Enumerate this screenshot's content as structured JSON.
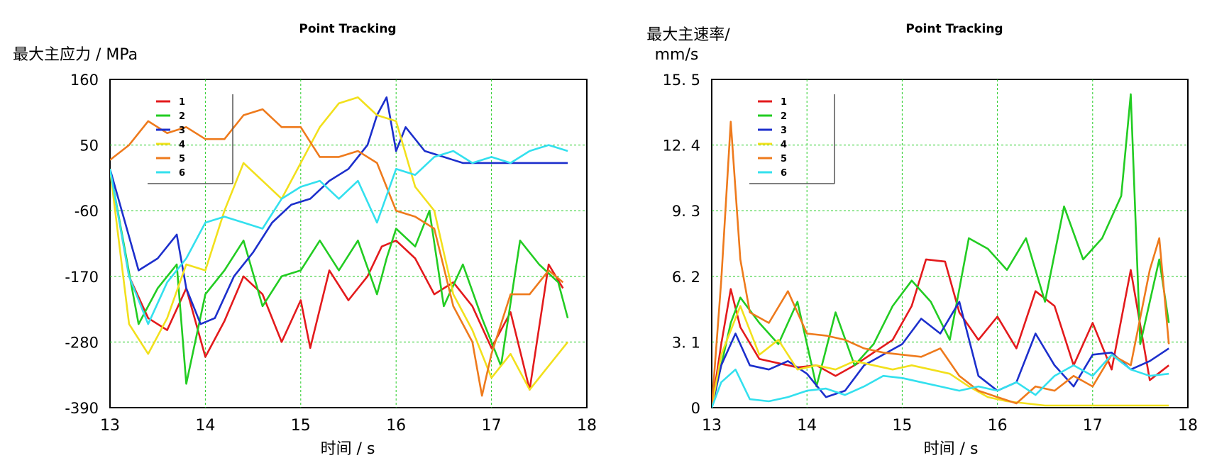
{
  "chart_data": [
    {
      "type": "line",
      "title": "Point Tracking",
      "xlabel": "时间 / s",
      "ylabel": "最大主应力 / MPa",
      "xlim": [
        13,
        18
      ],
      "ylim": [
        -390,
        160
      ],
      "xticks": [
        "13",
        "14",
        "15",
        "16",
        "17",
        "18"
      ],
      "yticks": [
        "160",
        "50",
        "-60",
        "-170",
        "-280",
        "-390"
      ],
      "grid": true,
      "legend_position": "top-left",
      "series": [
        {
          "name": "1",
          "color": "#e31a1c",
          "x": [
            13,
            13.2,
            13.4,
            13.6,
            13.8,
            14.0,
            14.2,
            14.4,
            14.6,
            14.8,
            15.0,
            15.1,
            15.3,
            15.5,
            15.7,
            15.85,
            16.0,
            16.2,
            16.4,
            16.6,
            16.8,
            17.0,
            17.2,
            17.4,
            17.6,
            17.75
          ],
          "y": [
            10,
            -170,
            -240,
            -260,
            -190,
            -305,
            -245,
            -170,
            -200,
            -280,
            -210,
            -290,
            -160,
            -210,
            -170,
            -120,
            -110,
            -140,
            -200,
            -180,
            -220,
            -290,
            -230,
            -360,
            -150,
            -190
          ]
        },
        {
          "name": "2",
          "color": "#22cc22",
          "x": [
            13,
            13.3,
            13.5,
            13.7,
            13.8,
            14.0,
            14.2,
            14.4,
            14.6,
            14.8,
            15.0,
            15.2,
            15.4,
            15.6,
            15.8,
            15.9,
            16.0,
            16.2,
            16.35,
            16.5,
            16.7,
            16.9,
            17.1,
            17.3,
            17.5,
            17.7,
            17.8
          ],
          "y": [
            10,
            -250,
            -190,
            -150,
            -350,
            -200,
            -160,
            -110,
            -220,
            -170,
            -160,
            -110,
            -160,
            -110,
            -200,
            -140,
            -90,
            -120,
            -60,
            -220,
            -150,
            -240,
            -320,
            -110,
            -150,
            -180,
            -240
          ]
        },
        {
          "name": "3",
          "color": "#1c2fcc",
          "x": [
            13,
            13.3,
            13.5,
            13.7,
            13.8,
            13.95,
            14.1,
            14.3,
            14.5,
            14.7,
            14.9,
            15.1,
            15.3,
            15.5,
            15.7,
            15.8,
            15.9,
            16.0,
            16.1,
            16.3,
            16.5,
            16.7,
            17.0,
            17.3,
            17.6,
            17.8
          ],
          "y": [
            10,
            -160,
            -140,
            -100,
            -190,
            -250,
            -240,
            -170,
            -130,
            -80,
            -50,
            -40,
            -10,
            10,
            50,
            100,
            130,
            40,
            80,
            40,
            30,
            20,
            20,
            20,
            20,
            20
          ]
        },
        {
          "name": "4",
          "color": "#f2e01c",
          "x": [
            13,
            13.2,
            13.4,
            13.6,
            13.8,
            14.0,
            14.2,
            14.4,
            14.6,
            14.8,
            15.0,
            15.2,
            15.4,
            15.6,
            15.8,
            16.0,
            16.2,
            16.4,
            16.6,
            16.8,
            17.0,
            17.2,
            17.4,
            17.6,
            17.8
          ],
          "y": [
            10,
            -250,
            -300,
            -240,
            -150,
            -160,
            -60,
            20,
            -10,
            -40,
            20,
            80,
            120,
            130,
            100,
            90,
            -20,
            -60,
            -200,
            -260,
            -340,
            -300,
            -360,
            -320,
            -280
          ]
        },
        {
          "name": "5",
          "color": "#ee7a1c",
          "x": [
            13,
            13.2,
            13.4,
            13.6,
            13.8,
            14.0,
            14.2,
            14.4,
            14.6,
            14.8,
            15.0,
            15.2,
            15.4,
            15.6,
            15.8,
            16.0,
            16.2,
            16.4,
            16.6,
            16.8,
            16.9,
            17.0,
            17.2,
            17.4,
            17.6,
            17.75
          ],
          "y": [
            25,
            50,
            90,
            70,
            80,
            60,
            60,
            100,
            110,
            80,
            80,
            30,
            30,
            40,
            20,
            -60,
            -70,
            -90,
            -220,
            -280,
            -370,
            -300,
            -200,
            -200,
            -160,
            -180
          ]
        },
        {
          "name": "6",
          "color": "#33e0ee",
          "x": [
            13,
            13.2,
            13.4,
            13.6,
            13.8,
            14.0,
            14.2,
            14.4,
            14.6,
            14.8,
            15.0,
            15.2,
            15.4,
            15.6,
            15.8,
            16.0,
            16.2,
            16.4,
            16.6,
            16.8,
            17.0,
            17.2,
            17.4,
            17.6,
            17.8
          ],
          "y": [
            10,
            -170,
            -250,
            -180,
            -140,
            -80,
            -70,
            -80,
            -90,
            -40,
            -20,
            -10,
            -40,
            -10,
            -80,
            10,
            0,
            30,
            40,
            20,
            30,
            20,
            40,
            50,
            40
          ]
        }
      ]
    },
    {
      "type": "line",
      "title": "Point Tracking",
      "xlabel": "时间 / s",
      "ylabel": "最大主速率/ mm/s",
      "xlim": [
        13,
        18
      ],
      "ylim": [
        0,
        15.5
      ],
      "xticks": [
        "13",
        "14",
        "15",
        "16",
        "17",
        "18"
      ],
      "yticks": [
        "15. 5",
        "12. 4",
        "9. 3",
        "6. 2",
        "3. 1",
        "0"
      ],
      "grid": true,
      "legend_position": "top-left",
      "series": [
        {
          "name": "1",
          "color": "#e31a1c",
          "x": [
            13,
            13.1,
            13.2,
            13.3,
            13.5,
            13.7,
            13.9,
            14.1,
            14.3,
            14.5,
            14.7,
            14.9,
            15.1,
            15.25,
            15.45,
            15.6,
            15.8,
            16.0,
            16.2,
            16.4,
            16.6,
            16.8,
            17.0,
            17.2,
            17.4,
            17.6,
            17.8
          ],
          "y": [
            0,
            3.0,
            5.6,
            3.8,
            2.3,
            2.1,
            1.9,
            2.0,
            1.5,
            2.0,
            2.6,
            3.2,
            4.8,
            7.0,
            6.9,
            4.5,
            3.2,
            4.3,
            2.8,
            5.5,
            4.8,
            2.0,
            4.0,
            1.8,
            6.5,
            1.3,
            2.0
          ]
        },
        {
          "name": "2",
          "color": "#22cc22",
          "x": [
            13,
            13.1,
            13.2,
            13.3,
            13.5,
            13.7,
            13.9,
            14.1,
            14.3,
            14.5,
            14.7,
            14.9,
            15.1,
            15.3,
            15.5,
            15.7,
            15.9,
            16.1,
            16.3,
            16.5,
            16.7,
            16.9,
            17.1,
            17.3,
            17.4,
            17.5,
            17.7,
            17.8
          ],
          "y": [
            0,
            2.0,
            4.0,
            5.2,
            4.0,
            3.0,
            5.0,
            1.0,
            4.5,
            2.0,
            3.0,
            4.8,
            6.0,
            5.0,
            3.2,
            8.0,
            7.5,
            6.5,
            8.0,
            5.0,
            9.5,
            7.0,
            8.0,
            10.0,
            14.8,
            3.0,
            7.0,
            4.0
          ]
        },
        {
          "name": "3",
          "color": "#1c2fcc",
          "x": [
            13,
            13.1,
            13.25,
            13.4,
            13.6,
            13.8,
            14.0,
            14.2,
            14.4,
            14.6,
            14.8,
            15.0,
            15.2,
            15.4,
            15.6,
            15.8,
            16.0,
            16.2,
            16.4,
            16.6,
            16.8,
            17.0,
            17.2,
            17.4,
            17.6,
            17.8
          ],
          "y": [
            0,
            2.0,
            3.5,
            2.0,
            1.8,
            2.2,
            1.6,
            0.5,
            0.8,
            2.0,
            2.5,
            3.0,
            4.2,
            3.5,
            5.0,
            1.5,
            0.8,
            1.2,
            3.5,
            2.0,
            1.0,
            2.5,
            2.6,
            1.8,
            2.2,
            2.8
          ]
        },
        {
          "name": "4",
          "color": "#f2e01c",
          "x": [
            13,
            13.1,
            13.3,
            13.5,
            13.7,
            13.9,
            14.1,
            14.3,
            14.5,
            14.7,
            14.9,
            15.1,
            15.3,
            15.5,
            15.7,
            15.9,
            16.1,
            16.3,
            16.5,
            16.7,
            16.9,
            17.1,
            17.3,
            17.5,
            17.7,
            17.8
          ],
          "y": [
            0,
            2.5,
            4.8,
            2.5,
            3.2,
            1.8,
            2.0,
            1.8,
            2.2,
            2.0,
            1.8,
            2.0,
            1.8,
            1.6,
            1.0,
            0.5,
            0.3,
            0.2,
            0.1,
            0.1,
            0.1,
            0.1,
            0.1,
            0.1,
            0.1,
            0.1
          ]
        },
        {
          "name": "5",
          "color": "#ee7a1c",
          "x": [
            13,
            13.1,
            13.2,
            13.3,
            13.4,
            13.6,
            13.8,
            14.0,
            14.2,
            14.4,
            14.6,
            14.8,
            15.0,
            15.2,
            15.4,
            15.6,
            15.8,
            16.0,
            16.2,
            16.4,
            16.6,
            16.8,
            17.0,
            17.2,
            17.4,
            17.6,
            17.7,
            17.8
          ],
          "y": [
            0,
            6.0,
            13.5,
            7.0,
            4.5,
            4.0,
            5.5,
            3.5,
            3.4,
            3.2,
            2.8,
            2.6,
            2.5,
            2.4,
            2.8,
            1.5,
            0.8,
            0.5,
            0.2,
            1.0,
            0.8,
            1.5,
            1.0,
            2.5,
            2.0,
            6.5,
            8.0,
            3.0
          ]
        },
        {
          "name": "6",
          "color": "#33e0ee",
          "x": [
            13,
            13.1,
            13.25,
            13.4,
            13.6,
            13.8,
            14.0,
            14.2,
            14.4,
            14.6,
            14.8,
            15.0,
            15.2,
            15.4,
            15.6,
            15.8,
            16.0,
            16.2,
            16.4,
            16.6,
            16.8,
            17.0,
            17.2,
            17.4,
            17.6,
            17.8
          ],
          "y": [
            0,
            1.2,
            1.8,
            0.4,
            0.3,
            0.5,
            0.8,
            0.9,
            0.6,
            1.0,
            1.5,
            1.4,
            1.2,
            1.0,
            0.8,
            1.0,
            0.8,
            1.2,
            0.6,
            1.5,
            2.0,
            1.5,
            2.5,
            1.8,
            1.5,
            1.6
          ]
        }
      ]
    }
  ]
}
